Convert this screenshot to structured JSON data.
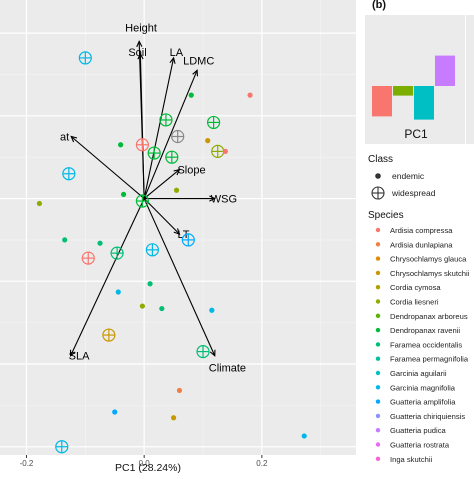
{
  "chart_data": [
    {
      "type": "scatter",
      "subtype": "pca-biplot",
      "title": "",
      "xlabel": "PC1 (28.24%)",
      "ylabel": "",
      "xlim": [
        -0.245,
        0.36
      ],
      "ylim": [
        -0.31,
        0.24
      ],
      "x_ticks": [
        -0.2,
        0.0,
        0.2
      ],
      "x_tick_labels": [
        "-0.2",
        "0.0",
        "0.2"
      ],
      "grid": true,
      "background": "#ebebeb",
      "legend_placement": "right",
      "loadings": [
        {
          "label": "Height",
          "x": -0.0085,
          "y": 0.19
        },
        {
          "label": "Soil",
          "x": -0.0065,
          "y": 0.175
        },
        {
          "label": "LA",
          "x": 0.05,
          "y": 0.17
        },
        {
          "label": "LDMC",
          "x": 0.09,
          "y": 0.155
        },
        {
          "label": "Slope",
          "x": 0.06,
          "y": 0.035
        },
        {
          "label": "WSG",
          "x": 0.12,
          "y": 0.0
        },
        {
          "label": "LT",
          "x": 0.06,
          "y": -0.043
        },
        {
          "label": "Climate",
          "x": 0.12,
          "y": -0.19
        },
        {
          "label": "SLA",
          "x": -0.125,
          "y": -0.19
        },
        {
          "label": "at",
          "x": -0.124,
          "y": 0.075
        }
      ],
      "points": [
        {
          "x": -0.1,
          "y": 0.17,
          "class": "widespread",
          "species": "Garcinia magnifolia"
        },
        {
          "x": -0.04,
          "y": 0.065,
          "class": "endemic",
          "species": "Dendropanax ravenii"
        },
        {
          "x": 0.057,
          "y": 0.075,
          "class": "widespread",
          "species": "Gentiana sp"
        },
        {
          "x": 0.08,
          "y": 0.125,
          "class": "endemic",
          "species": "Dendropanax ravenii"
        },
        {
          "x": 0.118,
          "y": 0.092,
          "class": "widespread",
          "species": "Dendropanax ravenii"
        },
        {
          "x": 0.18,
          "y": 0.125,
          "class": "endemic",
          "species": "Ardisia compressa"
        },
        {
          "x": -0.003,
          "y": 0.065,
          "class": "widespread",
          "species": "Ardisia compressa"
        },
        {
          "x": 0.017,
          "y": 0.055,
          "class": "widespread",
          "species": "Dendropanax ravenii"
        },
        {
          "x": 0.037,
          "y": 0.095,
          "class": "widespread",
          "species": "Dendropanax ravenii"
        },
        {
          "x": 0.047,
          "y": 0.05,
          "class": "widespread",
          "species": "Dendropanax ravenii"
        },
        {
          "x": 0.125,
          "y": 0.057,
          "class": "widespread",
          "species": "Cordia liesneri"
        },
        {
          "x": 0.138,
          "y": 0.057,
          "class": "endemic",
          "species": "Ardisia compressa"
        },
        {
          "x": -0.128,
          "y": 0.03,
          "class": "widespread",
          "species": "Garcinia magnifolia"
        },
        {
          "x": -0.035,
          "y": 0.005,
          "class": "endemic",
          "species": "Dendropanax ravenii"
        },
        {
          "x": -0.003,
          "y": -0.003,
          "class": "widespread",
          "species": "Dendropanax ravenii"
        },
        {
          "x": 0.055,
          "y": 0.01,
          "class": "endemic",
          "species": "Cordia liesneri"
        },
        {
          "x": -0.178,
          "y": -0.006,
          "class": "endemic",
          "species": "Cordia liesneri"
        },
        {
          "x": -0.135,
          "y": -0.05,
          "class": "endemic",
          "species": "Faramea occidentalis"
        },
        {
          "x": -0.075,
          "y": -0.054,
          "class": "endemic",
          "species": "Faramea occidentalis"
        },
        {
          "x": -0.046,
          "y": -0.066,
          "class": "widespread",
          "species": "Faramea occidentalis"
        },
        {
          "x": 0.014,
          "y": -0.062,
          "class": "widespread",
          "species": "Garcinia magnifolia"
        },
        {
          "x": -0.095,
          "y": -0.072,
          "class": "widespread",
          "species": "Ardisia compressa"
        },
        {
          "x": -0.044,
          "y": -0.113,
          "class": "endemic",
          "species": "Garcinia magnifolia"
        },
        {
          "x": 0.075,
          "y": -0.05,
          "class": "widespread",
          "species": "Guatteria amplifolia"
        },
        {
          "x": 0.01,
          "y": -0.103,
          "class": "endemic",
          "species": "Faramea occidentalis"
        },
        {
          "x": -0.003,
          "y": -0.13,
          "class": "endemic",
          "species": "Cordia liesneri"
        },
        {
          "x": 0.03,
          "y": -0.133,
          "class": "endemic",
          "species": "Faramea occidentalis"
        },
        {
          "x": 0.115,
          "y": -0.135,
          "class": "endemic",
          "species": "Garcinia magnifolia"
        },
        {
          "x": -0.06,
          "y": -0.165,
          "class": "widespread",
          "species": "Chrysochlamys skutchii"
        },
        {
          "x": 0.1,
          "y": -0.185,
          "class": "widespread",
          "species": "Faramea occidentalis"
        },
        {
          "x": 0.06,
          "y": -0.232,
          "class": "endemic",
          "species": "Ardisia dunlapiana"
        },
        {
          "x": -0.05,
          "y": -0.258,
          "class": "endemic",
          "species": "Guatteria amplifolia"
        },
        {
          "x": 0.05,
          "y": -0.265,
          "class": "endemic",
          "species": "Chrysochlamys skutchii"
        },
        {
          "x": -0.14,
          "y": -0.3,
          "class": "widespread",
          "species": "Garcinia magnifolia"
        },
        {
          "x": 0.272,
          "y": -0.287,
          "class": "endemic",
          "species": "Garcinia magnifolia"
        },
        {
          "x": 0.108,
          "y": 0.07,
          "class": "endemic",
          "species": "Chrysochlamys skutchii"
        }
      ]
    },
    {
      "type": "bar",
      "panel_label": "(b)",
      "xlabel": "PC1",
      "values": [
        -0.38,
        -0.12,
        -0.42,
        0.38
      ],
      "colors": [
        "#f8766d",
        "#7cae00",
        "#00bfc4",
        "#c77cff"
      ]
    }
  ],
  "legend": {
    "class_title": "Class",
    "class_items": [
      {
        "label": "endemic",
        "marker": "dot"
      },
      {
        "label": "widespread",
        "marker": "circle-plus"
      }
    ],
    "species_title": "Species",
    "species": [
      {
        "label": "Ardisia compressa",
        "color": "#f8766d"
      },
      {
        "label": "Ardisia dunlapiana",
        "color": "#ee8044"
      },
      {
        "label": "Chrysochlamys glauca",
        "color": "#de8c00"
      },
      {
        "label": "Chrysochlamys skutchii",
        "color": "#c99800"
      },
      {
        "label": "Cordia cymosa",
        "color": "#b0a100"
      },
      {
        "label": "Cordia liesneri",
        "color": "#8fab00"
      },
      {
        "label": "Dendropanax arboreus",
        "color": "#5bb300"
      },
      {
        "label": "Dendropanax ravenii",
        "color": "#00ba38"
      },
      {
        "label": "Faramea occidentalis",
        "color": "#00bf74"
      },
      {
        "label": "Faramea permagnifolia",
        "color": "#00c19c"
      },
      {
        "label": "Garcinia aguilarii",
        "color": "#00bfc4"
      },
      {
        "label": "Garcinia magnifolia",
        "color": "#00b8e7"
      },
      {
        "label": "Guatteria amplifolia",
        "color": "#00a9ff"
      },
      {
        "label": "Guatteria chiriquiensis",
        "color": "#8b93ff"
      },
      {
        "label": "Guatteria pudica",
        "color": "#c77cff"
      },
      {
        "label": "Guatteria rostrata",
        "color": "#e76bf3"
      },
      {
        "label": "Inga skutchii",
        "color": "#fa62db"
      }
    ]
  }
}
